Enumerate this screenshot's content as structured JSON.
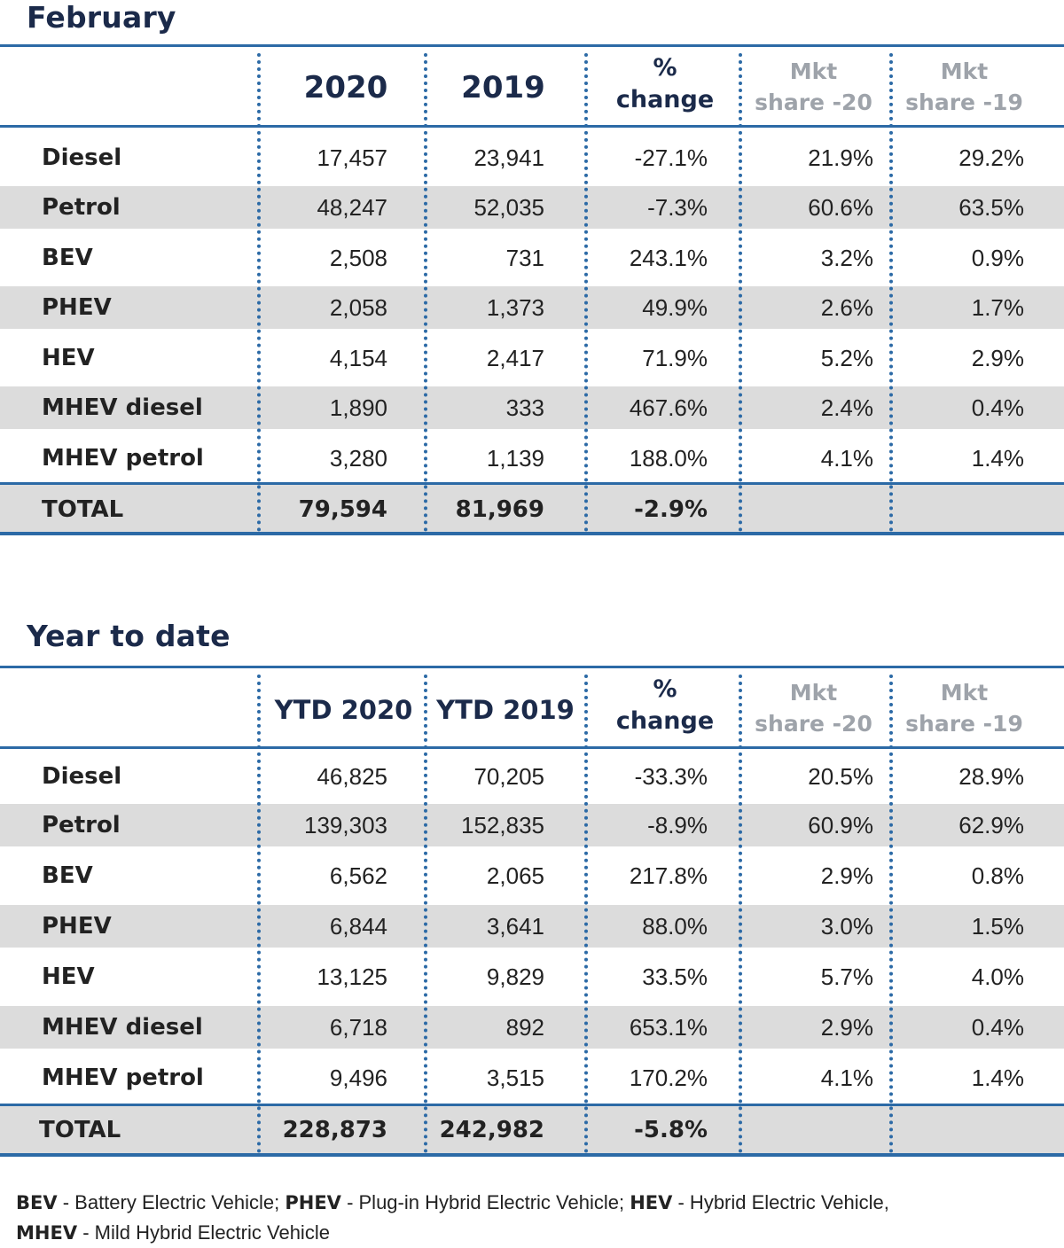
{
  "sections": [
    {
      "title": "February",
      "headers": [
        "2020",
        "2019",
        "%",
        "change",
        "Mkt",
        "share -20",
        "Mkt",
        "share -19"
      ],
      "rows": [
        {
          "label": "Diesel",
          "v1": "17,457",
          "v2": "23,941",
          "pct": "-27.1%",
          "ms20": "21.9%",
          "ms19": "29.2%"
        },
        {
          "label": "Petrol",
          "v1": "48,247",
          "v2": "52,035",
          "pct": "-7.3%",
          "ms20": "60.6%",
          "ms19": "63.5%"
        },
        {
          "label": "BEV",
          "v1": "2,508",
          "v2": "731",
          "pct": "243.1%",
          "ms20": "3.2%",
          "ms19": "0.9%"
        },
        {
          "label": "PHEV",
          "v1": "2,058",
          "v2": "1,373",
          "pct": "49.9%",
          "ms20": "2.6%",
          "ms19": "1.7%"
        },
        {
          "label": "HEV",
          "v1": "4,154",
          "v2": "2,417",
          "pct": "71.9%",
          "ms20": "5.2%",
          "ms19": "2.9%"
        },
        {
          "label": "MHEV diesel",
          "v1": "1,890",
          "v2": "333",
          "pct": "467.6%",
          "ms20": "2.4%",
          "ms19": "0.4%"
        },
        {
          "label": "MHEV petrol",
          "v1": "3,280",
          "v2": "1,139",
          "pct": "188.0%",
          "ms20": "4.1%",
          "ms19": "1.4%"
        }
      ],
      "total": {
        "label": "TOTAL",
        "v1": "79,594",
        "v2": "81,969",
        "pct": "-2.9%"
      }
    },
    {
      "title": "Year to date",
      "headers": [
        "YTD 2020",
        "YTD 2019",
        "%",
        "change",
        "Mkt",
        "share -20",
        "Mkt",
        "share -19"
      ],
      "rows": [
        {
          "label": "Diesel",
          "v1": "46,825",
          "v2": "70,205",
          "pct": "-33.3%",
          "ms20": "20.5%",
          "ms19": "28.9%"
        },
        {
          "label": "Petrol",
          "v1": "139,303",
          "v2": "152,835",
          "pct": "-8.9%",
          "ms20": "60.9%",
          "ms19": "62.9%"
        },
        {
          "label": "BEV",
          "v1": "6,562",
          "v2": "2,065",
          "pct": "217.8%",
          "ms20": "2.9%",
          "ms19": "0.8%"
        },
        {
          "label": "PHEV",
          "v1": "6,844",
          "v2": "3,641",
          "pct": "88.0%",
          "ms20": "3.0%",
          "ms19": "1.5%"
        },
        {
          "label": "HEV",
          "v1": "13,125",
          "v2": "9,829",
          "pct": "33.5%",
          "ms20": "5.7%",
          "ms19": "4.0%"
        },
        {
          "label": "MHEV diesel",
          "v1": "6,718",
          "v2": "892",
          "pct": "653.1%",
          "ms20": "2.9%",
          "ms19": "0.4%"
        },
        {
          "label": "MHEV petrol",
          "v1": "9,496",
          "v2": "3,515",
          "pct": "170.2%",
          "ms20": "4.1%",
          "ms19": "1.4%"
        }
      ],
      "total": {
        "label": "TOTAL",
        "v1": "228,873",
        "v2": "242,982",
        "pct": "-5.8%"
      }
    }
  ],
  "footnote": {
    "bev_abbr": "BEV",
    "bev_text": " - Battery Electric Vehicle; ",
    "phev_abbr": "PHEV",
    "phev_text": " - Plug-in Hybrid Electric Vehicle; ",
    "hev_abbr": "HEV",
    "hev_text": " - Hybrid Electric Vehicle,",
    "mhev_abbr": "MHEV",
    "mhev_text": " - Mild Hybrid Electric Vehicle"
  },
  "colors": {
    "accent": "#2c6aa6",
    "title": "#1b2a4a",
    "shade": "#dcdcdc",
    "muted_header": "#9ea3aa"
  }
}
